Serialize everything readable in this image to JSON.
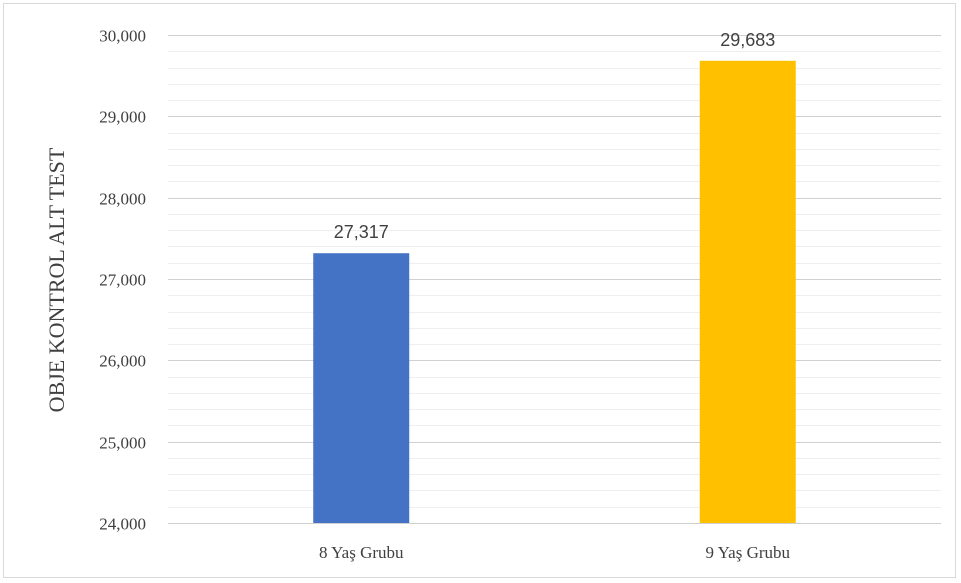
{
  "chart_data": {
    "type": "bar",
    "categories": [
      "8 Yaş Grubu",
      "9 Yaş Grubu"
    ],
    "values": [
      27.317,
      29.683
    ],
    "data_labels": [
      "27,317",
      "29,683"
    ],
    "colors": [
      "#4472c4",
      "#ffc000"
    ],
    "ylabel": "OBJE KONTROL  ALT TEST",
    "xlabel": "",
    "title": "",
    "ylim": [
      24,
      30
    ],
    "major_ticks": [
      24,
      25,
      26,
      27,
      28,
      29,
      30
    ],
    "tick_labels": [
      "24,000",
      "25,000",
      "26,000",
      "27,000",
      "28,000",
      "29,000",
      "30,000"
    ],
    "minor_step": 0.2,
    "grid": true,
    "legend": "none"
  }
}
